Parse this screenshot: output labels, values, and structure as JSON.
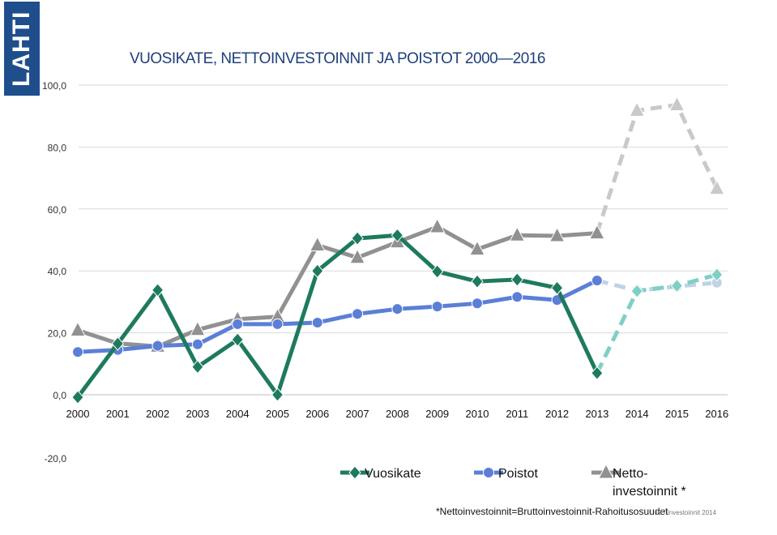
{
  "logo": {
    "text": "LAHTI"
  },
  "title": "VUOSIKATE, NETTOINVESTOINNIT JA POISTOT 2000—2016",
  "footnote": "*Nettoinvestoinnit=Bruttoinvestoinnit-Rahoitusosuudet",
  "slide_label": "12 / Investoinnit 2014",
  "chart_data": {
    "type": "line",
    "title": "VUOSIKATE, NETTOINVESTOINNIT JA POISTOT 2000—2016",
    "categories": [
      "2000",
      "2001",
      "2002",
      "2003",
      "2004",
      "2005",
      "2006",
      "2007",
      "2008",
      "2009",
      "2010",
      "2011",
      "2012",
      "2013",
      "2014",
      "2015",
      "2016"
    ],
    "y_ticks": [
      "100,0",
      "80,0",
      "60,0",
      "40,0",
      "20,0",
      "0,0",
      "-20,0"
    ],
    "ylim": [
      -20,
      100
    ],
    "grid": true,
    "legend_position": "bottom",
    "series": [
      {
        "name": "Vuosikate",
        "color": "#1e7a5f",
        "forecast_color": "#7fd0c4",
        "marker": "diamond",
        "values": [
          -0.8,
          16.5,
          33.8,
          9.0,
          17.8,
          0.0,
          40.0,
          50.5,
          51.5,
          39.8,
          36.6,
          37.2,
          34.5,
          7.0,
          33.5,
          35.2,
          38.8
        ]
      },
      {
        "name": "Poistot",
        "color": "#5b7fd6",
        "forecast_color": "#bfd3e6",
        "marker": "circle",
        "values": [
          13.8,
          14.5,
          15.8,
          16.3,
          22.8,
          22.8,
          23.3,
          26.1,
          27.7,
          28.5,
          29.5,
          31.6,
          30.6,
          36.9,
          33.6,
          35.0,
          36.2
        ]
      },
      {
        "name": "Netto-\ninvestoinnit *",
        "color": "#919191",
        "forecast_color": "#c9c9c9",
        "marker": "triangle",
        "values": [
          20.8,
          16.6,
          15.6,
          21.0,
          24.4,
          25.2,
          48.3,
          44.3,
          49.3,
          54.2,
          47.0,
          51.5,
          51.3,
          52.2,
          91.8,
          93.6,
          66.6
        ]
      }
    ],
    "forecast_from_index": 13
  }
}
